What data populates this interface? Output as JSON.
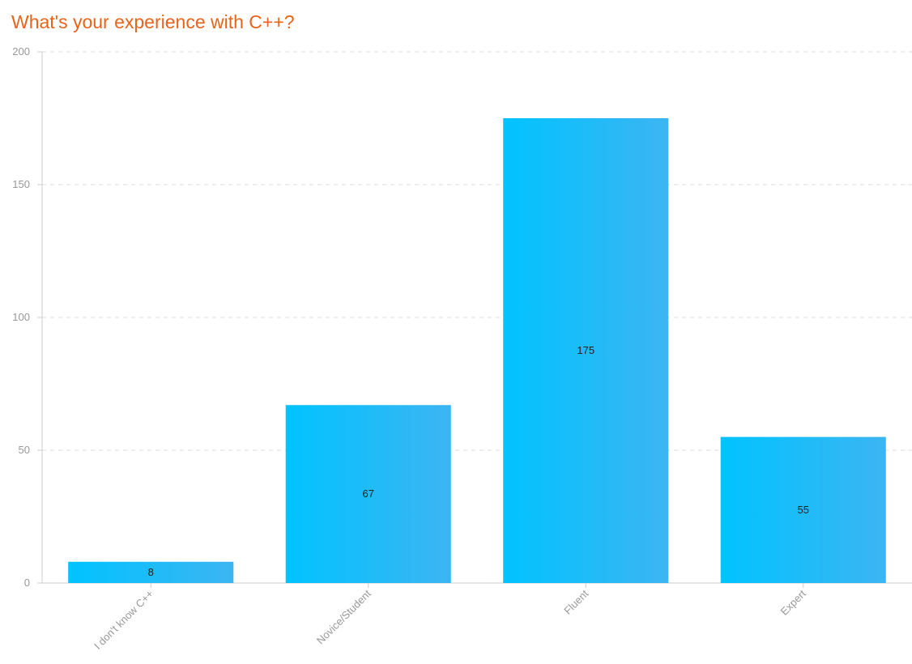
{
  "chart_data": {
    "type": "bar",
    "title": "What's your experience with C++?",
    "categories": [
      "I don't know C++",
      "Novice/Student",
      "Fluent",
      "Expert"
    ],
    "values": [
      8,
      67,
      175,
      55
    ],
    "xlabel": "",
    "ylabel": "",
    "ylim": [
      0,
      200
    ],
    "yticks": [
      0,
      50,
      100,
      150,
      200
    ],
    "grid": true,
    "legend": "none",
    "colors": {
      "title": "#e8641b",
      "bar_start": "#00c3ff",
      "bar_end": "#3cb5f2",
      "grid": "#dddddd",
      "axis": "#cccccc",
      "tick_text": "#999999",
      "value_text": "#222222"
    }
  }
}
